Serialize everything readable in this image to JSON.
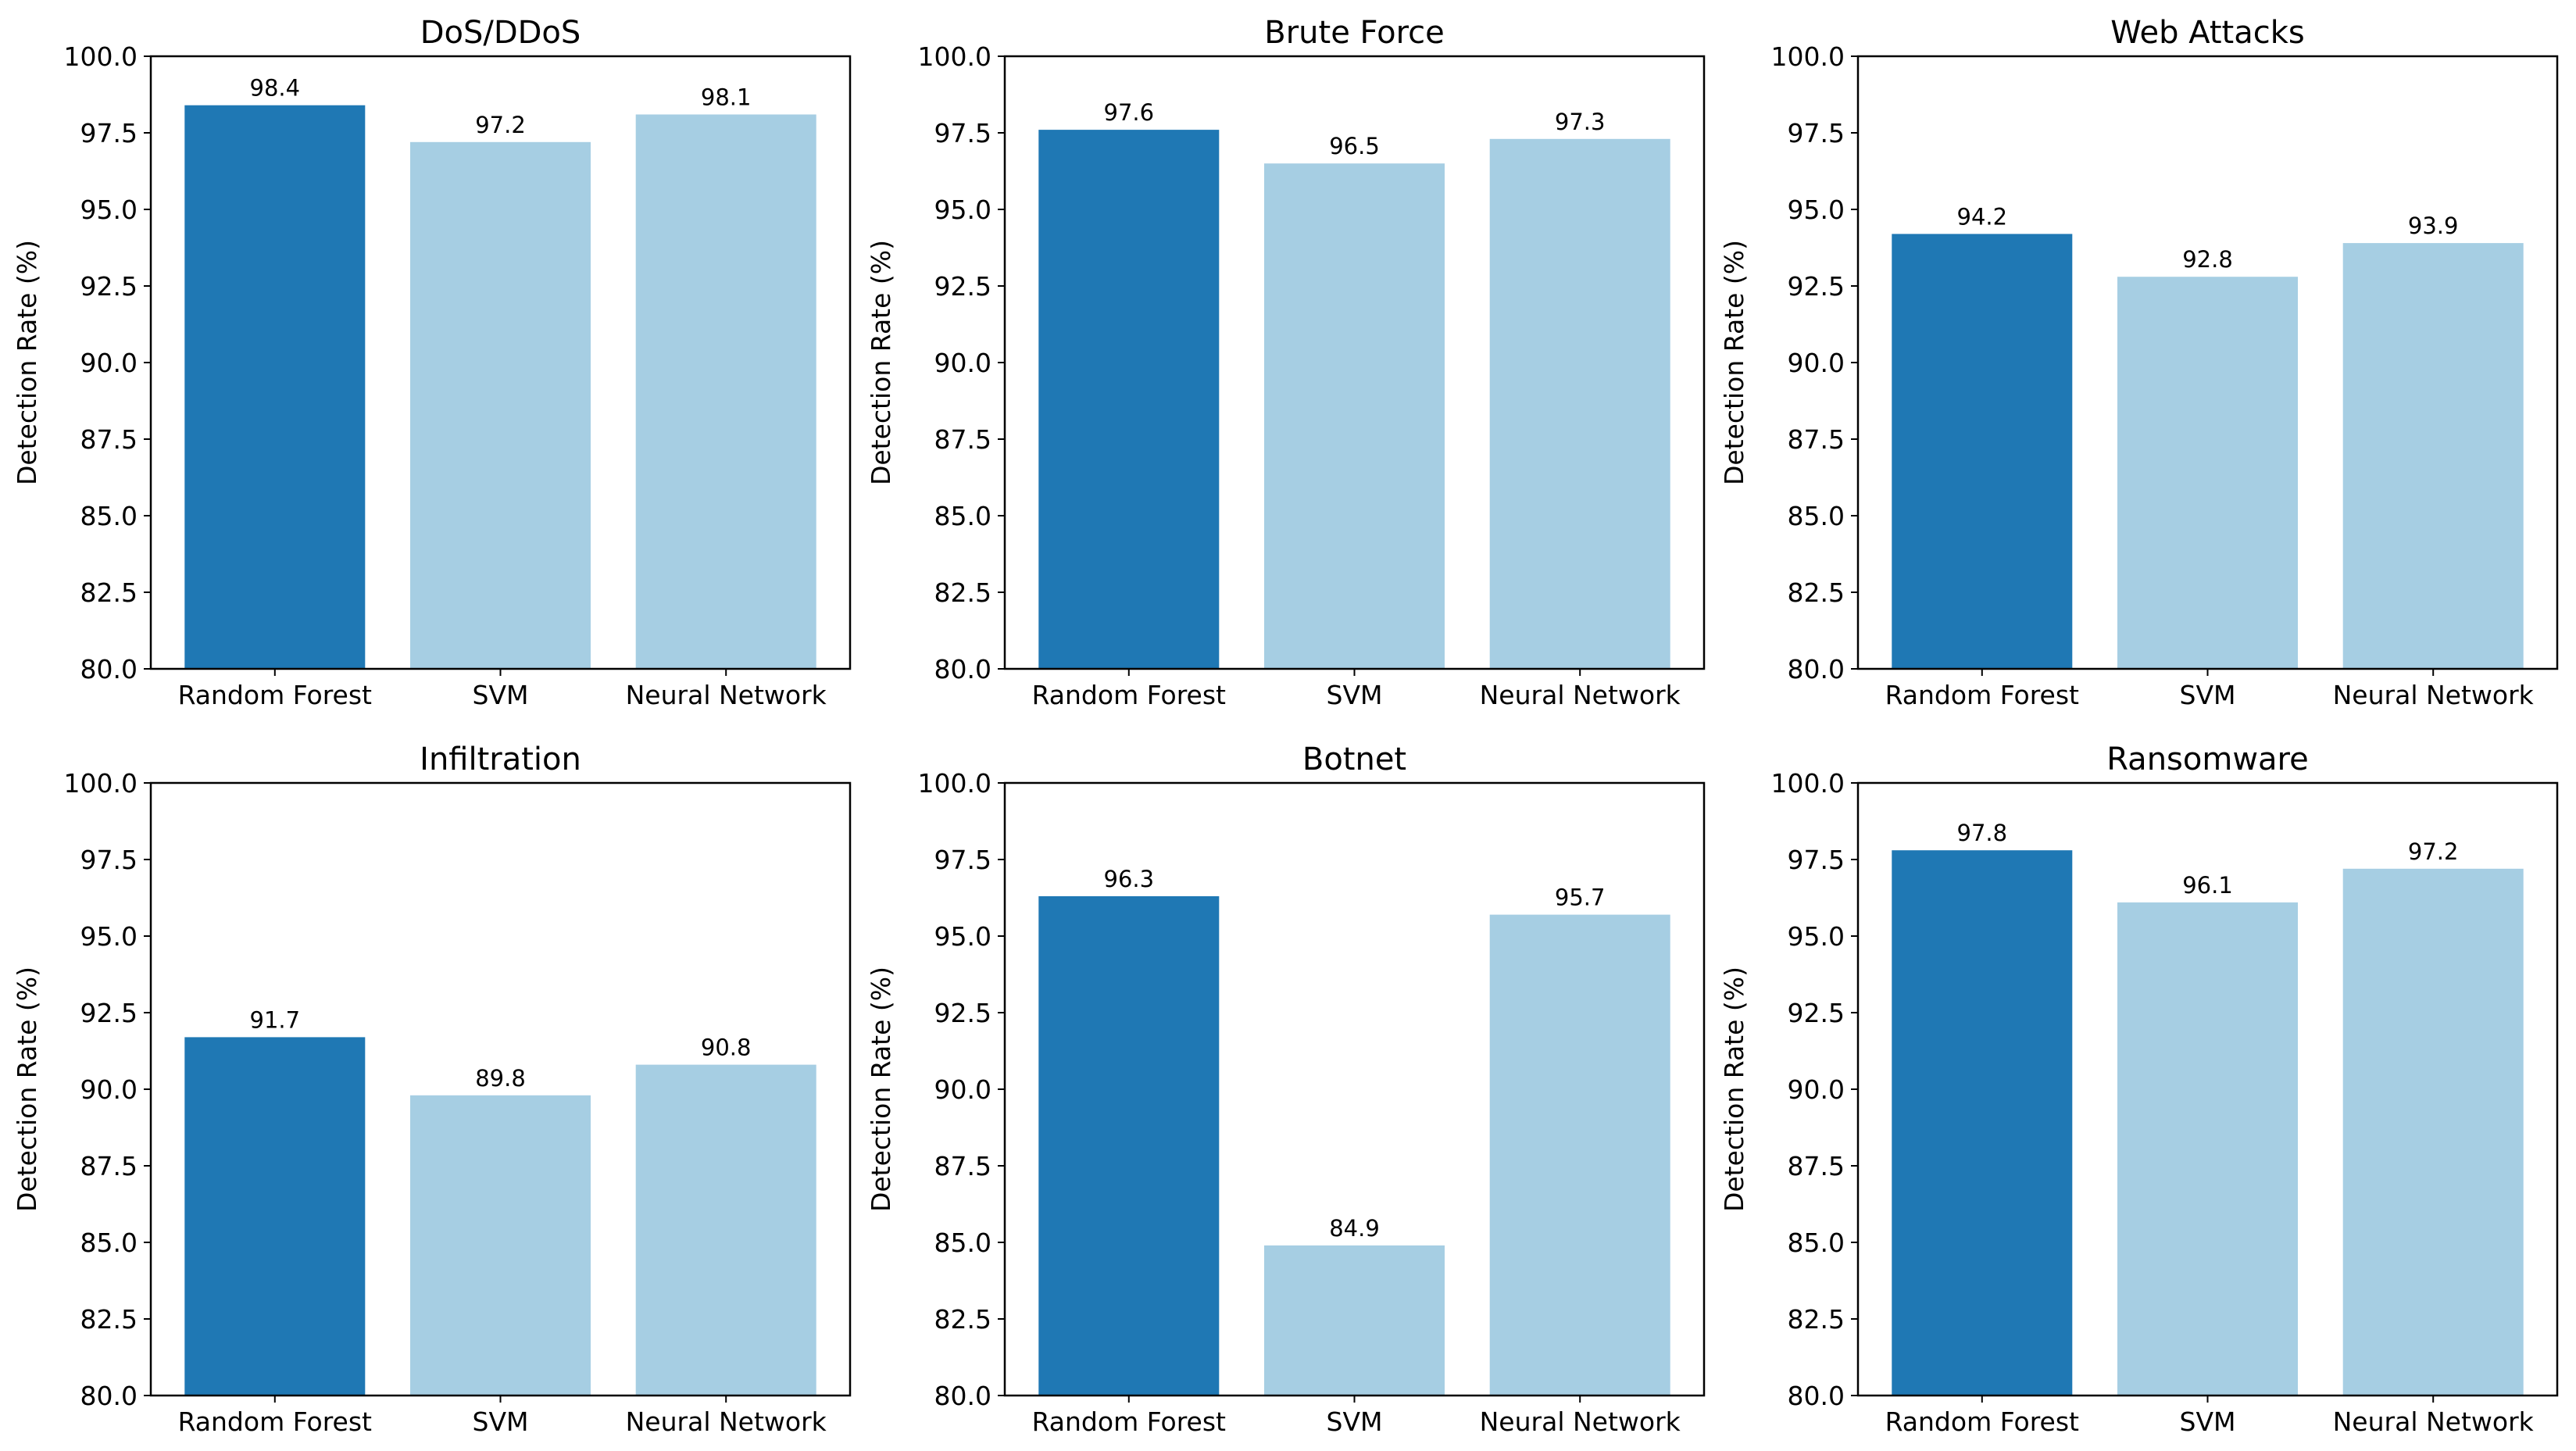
{
  "chart_data": [
    {
      "type": "bar",
      "title": "DoS/DDoS",
      "ylabel": "Detection Rate (%)",
      "categories": [
        "Random Forest",
        "SVM",
        "Neural Network"
      ],
      "values": [
        98.4,
        97.2,
        98.1
      ],
      "value_labels": [
        "98.4",
        "97.2",
        "98.1"
      ],
      "bar_colors": [
        "#1f78b4",
        "#a6cee3",
        "#a6cee3"
      ],
      "ylim": [
        80,
        100
      ],
      "yticks": [
        "80.0",
        "82.5",
        "85.0",
        "87.5",
        "90.0",
        "92.5",
        "95.0",
        "97.5",
        "100.0"
      ],
      "grid": false,
      "legend": "none"
    },
    {
      "type": "bar",
      "title": "Brute Force",
      "ylabel": "Detection Rate (%)",
      "categories": [
        "Random Forest",
        "SVM",
        "Neural Network"
      ],
      "values": [
        97.6,
        96.5,
        97.3
      ],
      "value_labels": [
        "97.6",
        "96.5",
        "97.3"
      ],
      "bar_colors": [
        "#1f78b4",
        "#a6cee3",
        "#a6cee3"
      ],
      "ylim": [
        80,
        100
      ],
      "yticks": [
        "80.0",
        "82.5",
        "85.0",
        "87.5",
        "90.0",
        "92.5",
        "95.0",
        "97.5",
        "100.0"
      ],
      "grid": false,
      "legend": "none"
    },
    {
      "type": "bar",
      "title": "Web Attacks",
      "ylabel": "Detection Rate (%)",
      "categories": [
        "Random Forest",
        "SVM",
        "Neural Network"
      ],
      "values": [
        94.2,
        92.8,
        93.9
      ],
      "value_labels": [
        "94.2",
        "92.8",
        "93.9"
      ],
      "bar_colors": [
        "#1f78b4",
        "#a6cee3",
        "#a6cee3"
      ],
      "ylim": [
        80,
        100
      ],
      "yticks": [
        "80.0",
        "82.5",
        "85.0",
        "87.5",
        "90.0",
        "92.5",
        "95.0",
        "97.5",
        "100.0"
      ],
      "grid": false,
      "legend": "none"
    },
    {
      "type": "bar",
      "title": "Infiltration",
      "ylabel": "Detection Rate (%)",
      "categories": [
        "Random Forest",
        "SVM",
        "Neural Network"
      ],
      "values": [
        91.7,
        89.8,
        90.8
      ],
      "value_labels": [
        "91.7",
        "89.8",
        "90.8"
      ],
      "bar_colors": [
        "#1f78b4",
        "#a6cee3",
        "#a6cee3"
      ],
      "ylim": [
        80,
        100
      ],
      "yticks": [
        "80.0",
        "82.5",
        "85.0",
        "87.5",
        "90.0",
        "92.5",
        "95.0",
        "97.5",
        "100.0"
      ],
      "grid": false,
      "legend": "none"
    },
    {
      "type": "bar",
      "title": "Botnet",
      "ylabel": "Detection Rate (%)",
      "categories": [
        "Random Forest",
        "SVM",
        "Neural Network"
      ],
      "values": [
        96.3,
        84.9,
        95.7
      ],
      "value_labels": [
        "96.3",
        "84.9",
        "95.7"
      ],
      "bar_colors": [
        "#1f78b4",
        "#a6cee3",
        "#a6cee3"
      ],
      "ylim": [
        80,
        100
      ],
      "yticks": [
        "80.0",
        "82.5",
        "85.0",
        "87.5",
        "90.0",
        "92.5",
        "95.0",
        "97.5",
        "100.0"
      ],
      "grid": false,
      "legend": "none"
    },
    {
      "type": "bar",
      "title": "Ransomware",
      "ylabel": "Detection Rate (%)",
      "categories": [
        "Random Forest",
        "SVM",
        "Neural Network"
      ],
      "values": [
        97.8,
        96.1,
        97.2
      ],
      "value_labels": [
        "97.8",
        "96.1",
        "97.2"
      ],
      "bar_colors": [
        "#1f78b4",
        "#a6cee3",
        "#a6cee3"
      ],
      "ylim": [
        80,
        100
      ],
      "yticks": [
        "80.0",
        "82.5",
        "85.0",
        "87.5",
        "90.0",
        "92.5",
        "95.0",
        "97.5",
        "100.0"
      ],
      "grid": false,
      "legend": "none"
    }
  ]
}
